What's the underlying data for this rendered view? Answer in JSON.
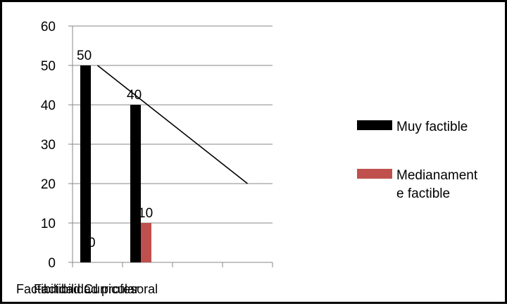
{
  "chart_data": {
    "type": "bar",
    "categories": [
      "Factibilidad Curricular",
      "Factibilidad profesoral",
      "",
      ""
    ],
    "ylim": [
      0,
      60
    ],
    "yticks": [
      0,
      10,
      20,
      30,
      40,
      50,
      60
    ],
    "series": [
      {
        "name": "Muy factible",
        "values": [
          50,
          40,
          null,
          null
        ],
        "labels": [
          "50",
          "40",
          "",
          ""
        ],
        "color": "#000000"
      },
      {
        "name": "Medianamente factible",
        "values": [
          0,
          10,
          null,
          null
        ],
        "labels": [
          "0",
          "10",
          "",
          ""
        ],
        "color": "#c0504d"
      }
    ],
    "overlay_line": {
      "category_index": [
        0.5,
        3.5
      ],
      "values": [
        50,
        20
      ],
      "color": "#000000"
    },
    "legend": {
      "position": "right",
      "items": [
        {
          "lines": [
            "Muy factible"
          ]
        },
        {
          "lines": [
            "Medianament",
            "e factible"
          ]
        }
      ]
    },
    "grid": true
  }
}
